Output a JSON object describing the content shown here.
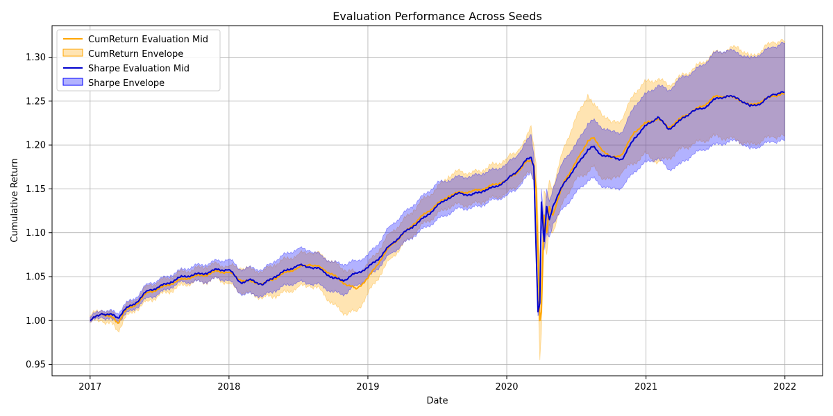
{
  "chart_data": {
    "type": "line",
    "title": "Evaluation Performance Across Seeds",
    "xlabel": "Date",
    "ylabel": "Cumulative Return",
    "xlim": [
      "2016-09-23",
      "2022-04-10"
    ],
    "ylim": [
      0.937,
      1.336
    ],
    "x_ticks": [
      "2017",
      "2018",
      "2019",
      "2020",
      "2021",
      "2022"
    ],
    "x_tick_dates": [
      "2017-01-01",
      "2018-01-01",
      "2019-01-01",
      "2020-01-01",
      "2021-01-01",
      "2022-01-01"
    ],
    "y_ticks": [
      "0.95",
      "1.00",
      "1.05",
      "1.10",
      "1.15",
      "1.20",
      "1.25",
      "1.30"
    ],
    "grid": true,
    "legend_position": "upper-left",
    "legend": [
      {
        "label": "CumReturn Evaluation Mid",
        "kind": "line",
        "color": "#ffa500"
      },
      {
        "label": "CumReturn Envelope",
        "kind": "patch",
        "color": "#ffa500"
      },
      {
        "label": "Sharpe Evaluation Mid",
        "kind": "line",
        "color": "#0000cd"
      },
      {
        "label": "Sharpe Envelope",
        "kind": "patch",
        "color": "#0000ff"
      }
    ],
    "x": [
      "2017-01-01",
      "2017-02-01",
      "2017-03-01",
      "2017-03-15",
      "2017-04-01",
      "2017-05-01",
      "2017-06-01",
      "2017-07-01",
      "2017-08-01",
      "2017-09-01",
      "2017-10-01",
      "2017-11-01",
      "2017-12-01",
      "2018-01-01",
      "2018-02-01",
      "2018-03-01",
      "2018-04-01",
      "2018-05-01",
      "2018-06-01",
      "2018-07-01",
      "2018-08-01",
      "2018-09-01",
      "2018-10-01",
      "2018-11-01",
      "2018-12-01",
      "2019-01-01",
      "2019-02-01",
      "2019-03-01",
      "2019-04-01",
      "2019-05-01",
      "2019-06-01",
      "2019-07-01",
      "2019-08-01",
      "2019-09-01",
      "2019-10-01",
      "2019-11-01",
      "2019-12-01",
      "2020-01-01",
      "2020-02-01",
      "2020-02-20",
      "2020-03-05",
      "2020-03-12",
      "2020-03-18",
      "2020-03-23",
      "2020-03-28",
      "2020-04-01",
      "2020-04-08",
      "2020-04-15",
      "2020-04-22",
      "2020-05-01",
      "2020-06-01",
      "2020-07-01",
      "2020-08-01",
      "2020-08-15",
      "2020-09-01",
      "2020-10-01",
      "2020-11-01",
      "2020-12-01",
      "2021-01-01",
      "2021-02-01",
      "2021-03-01",
      "2021-04-01",
      "2021-05-01",
      "2021-06-01",
      "2021-07-01",
      "2021-08-01",
      "2021-09-01",
      "2021-10-01",
      "2021-11-01",
      "2021-12-01",
      "2021-12-31"
    ],
    "series": [
      {
        "name": "CumReturn Evaluation Mid",
        "color": "#ffa500",
        "values": [
          1.0,
          1.008,
          1.003,
          0.997,
          1.01,
          1.018,
          1.032,
          1.036,
          1.042,
          1.047,
          1.05,
          1.052,
          1.056,
          1.055,
          1.046,
          1.044,
          1.042,
          1.048,
          1.055,
          1.06,
          1.064,
          1.06,
          1.052,
          1.042,
          1.036,
          1.048,
          1.068,
          1.085,
          1.097,
          1.11,
          1.122,
          1.132,
          1.142,
          1.146,
          1.147,
          1.15,
          1.155,
          1.16,
          1.17,
          1.18,
          1.182,
          1.178,
          1.15,
          1.08,
          1.0,
          1.01,
          1.12,
          1.1,
          1.13,
          1.12,
          1.16,
          1.18,
          1.205,
          1.208,
          1.198,
          1.185,
          1.19,
          1.215,
          1.225,
          1.23,
          1.22,
          1.23,
          1.238,
          1.245,
          1.255,
          1.256,
          1.252,
          1.245,
          1.25,
          1.256,
          1.258
        ]
      },
      {
        "name": "CumReturn Envelope",
        "color": "#ffa500",
        "lower": [
          0.998,
          1.0,
          0.995,
          0.988,
          1.002,
          1.012,
          1.022,
          1.028,
          1.034,
          1.04,
          1.044,
          1.044,
          1.048,
          1.042,
          1.032,
          1.03,
          1.026,
          1.028,
          1.032,
          1.038,
          1.04,
          1.034,
          1.018,
          1.008,
          1.01,
          1.03,
          1.052,
          1.07,
          1.085,
          1.098,
          1.112,
          1.12,
          1.13,
          1.132,
          1.132,
          1.136,
          1.14,
          1.145,
          1.155,
          1.165,
          1.17,
          1.16,
          1.12,
          1.03,
          0.955,
          0.985,
          1.09,
          1.075,
          1.11,
          1.1,
          1.14,
          1.16,
          1.17,
          1.175,
          1.165,
          1.16,
          1.17,
          1.18,
          1.19,
          1.18,
          1.185,
          1.195,
          1.2,
          1.205,
          1.21,
          1.208,
          1.205,
          1.2,
          1.205,
          1.21,
          1.21
        ],
        "upper": [
          1.006,
          1.012,
          1.008,
          1.004,
          1.016,
          1.024,
          1.04,
          1.044,
          1.05,
          1.056,
          1.058,
          1.062,
          1.064,
          1.062,
          1.06,
          1.058,
          1.056,
          1.064,
          1.07,
          1.075,
          1.078,
          1.075,
          1.066,
          1.058,
          1.054,
          1.064,
          1.082,
          1.1,
          1.112,
          1.126,
          1.14,
          1.15,
          1.165,
          1.17,
          1.168,
          1.172,
          1.178,
          1.184,
          1.195,
          1.205,
          1.222,
          1.2,
          1.18,
          1.12,
          1.06,
          1.05,
          1.148,
          1.14,
          1.16,
          1.15,
          1.2,
          1.23,
          1.258,
          1.245,
          1.24,
          1.225,
          1.23,
          1.26,
          1.272,
          1.275,
          1.268,
          1.278,
          1.285,
          1.295,
          1.305,
          1.308,
          1.312,
          1.3,
          1.308,
          1.318,
          1.318
        ]
      },
      {
        "name": "Sharpe Evaluation Mid",
        "color": "#0000cd",
        "values": [
          1.0,
          1.008,
          1.006,
          1.003,
          1.012,
          1.02,
          1.034,
          1.038,
          1.044,
          1.05,
          1.052,
          1.054,
          1.058,
          1.058,
          1.043,
          1.046,
          1.041,
          1.05,
          1.057,
          1.063,
          1.061,
          1.058,
          1.048,
          1.046,
          1.054,
          1.06,
          1.072,
          1.086,
          1.098,
          1.108,
          1.118,
          1.13,
          1.14,
          1.145,
          1.143,
          1.148,
          1.152,
          1.16,
          1.172,
          1.182,
          1.186,
          1.176,
          1.084,
          1.01,
          1.02,
          1.135,
          1.09,
          1.13,
          1.115,
          1.13,
          1.158,
          1.175,
          1.195,
          1.198,
          1.19,
          1.186,
          1.184,
          1.208,
          1.222,
          1.232,
          1.218,
          1.228,
          1.238,
          1.242,
          1.252,
          1.256,
          1.253,
          1.244,
          1.248,
          1.258,
          1.26
        ]
      },
      {
        "name": "Sharpe Envelope",
        "color": "#0000ff",
        "lower": [
          0.998,
          1.004,
          1.0,
          0.998,
          1.006,
          1.014,
          1.026,
          1.03,
          1.038,
          1.044,
          1.044,
          1.044,
          1.048,
          1.046,
          1.03,
          1.03,
          1.028,
          1.034,
          1.04,
          1.044,
          1.042,
          1.04,
          1.032,
          1.03,
          1.04,
          1.048,
          1.062,
          1.076,
          1.086,
          1.096,
          1.106,
          1.114,
          1.122,
          1.128,
          1.128,
          1.132,
          1.138,
          1.142,
          1.152,
          1.162,
          1.168,
          1.16,
          1.08,
          1.005,
          1.015,
          1.11,
          1.08,
          1.1,
          1.095,
          1.11,
          1.13,
          1.145,
          1.16,
          1.162,
          1.155,
          1.15,
          1.152,
          1.17,
          1.18,
          1.185,
          1.172,
          1.178,
          1.188,
          1.195,
          1.2,
          1.203,
          1.205,
          1.195,
          1.2,
          1.204,
          1.205
        ],
        "upper": [
          1.004,
          1.012,
          1.01,
          1.008,
          1.018,
          1.026,
          1.042,
          1.046,
          1.052,
          1.058,
          1.062,
          1.064,
          1.068,
          1.07,
          1.058,
          1.06,
          1.058,
          1.068,
          1.076,
          1.082,
          1.08,
          1.074,
          1.066,
          1.064,
          1.068,
          1.074,
          1.09,
          1.108,
          1.12,
          1.132,
          1.144,
          1.156,
          1.16,
          1.164,
          1.164,
          1.168,
          1.172,
          1.178,
          1.19,
          1.202,
          1.212,
          1.19,
          1.096,
          1.018,
          1.03,
          1.15,
          1.108,
          1.15,
          1.136,
          1.15,
          1.185,
          1.2,
          1.225,
          1.228,
          1.222,
          1.215,
          1.215,
          1.245,
          1.258,
          1.268,
          1.262,
          1.276,
          1.282,
          1.292,
          1.305,
          1.308,
          1.305,
          1.298,
          1.305,
          1.312,
          1.316
        ]
      }
    ]
  }
}
